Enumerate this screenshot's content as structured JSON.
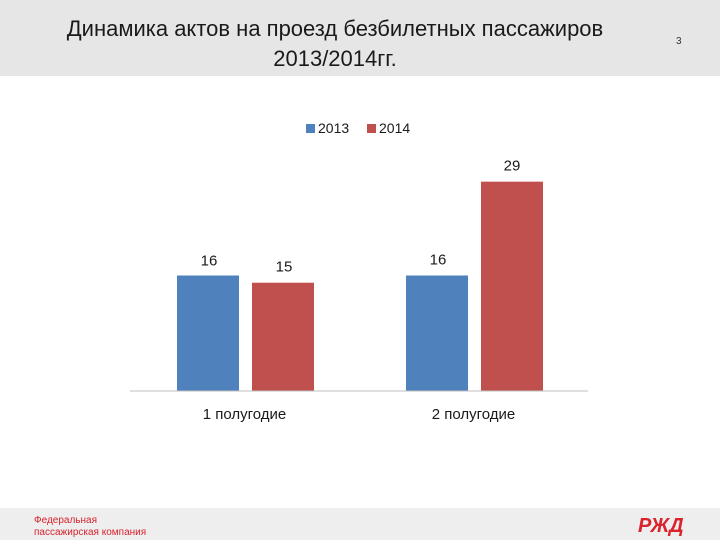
{
  "slide": {
    "title_line1": "Динамика актов на проезд безбилетных пассажиров",
    "title_line2": "2013/2014гг.",
    "page_number": "3"
  },
  "footer": {
    "company_line1": "Федеральная",
    "company_line2": "пассажирская компания",
    "logo_text": "РЖД"
  },
  "colors": {
    "series_2013": "#4f81bd",
    "series_2014": "#c0504d",
    "accent": "#d9232d"
  },
  "chart_data": {
    "type": "bar",
    "categories": [
      "1 полугодие",
      "2 полугодие"
    ],
    "series": [
      {
        "name": "2013",
        "values": [
          16,
          16
        ],
        "labels": [
          "16",
          "16"
        ]
      },
      {
        "name": "2014",
        "values": [
          15,
          29
        ],
        "labels": [
          "15",
          "29"
        ]
      }
    ],
    "ylim": [
      0,
      32
    ],
    "legend": "top-center",
    "grid": false
  }
}
